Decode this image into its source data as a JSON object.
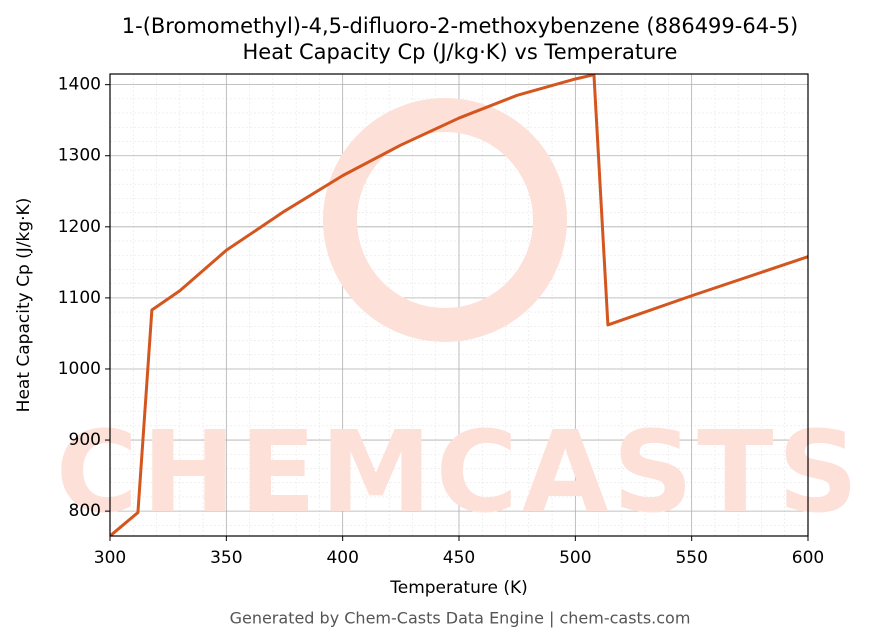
{
  "chart_data": {
    "type": "line",
    "title": "1-(Bromomethyl)-4,5-difluoro-2-methoxybenzene (886499-64-5)",
    "subtitle": "Heat Capacity Cp (J/kg·K) vs Temperature",
    "x_label": "Temperature (K)",
    "y_label": "Heat Capacity Cp (J/kg·K)",
    "watermark": "CHEMCASTS",
    "footer": "Generated by Chem-Casts Data Engine | chem-casts.com",
    "x": [
      300,
      312,
      318,
      330,
      350,
      375,
      400,
      425,
      450,
      475,
      500,
      508,
      514,
      550,
      600
    ],
    "series": [
      {
        "name": "Cp",
        "color": "#d4561f",
        "values": [
          765,
          798,
          1083,
          1110,
          1167,
          1222,
          1272,
          1315,
          1353,
          1385,
          1408,
          1414,
          1062,
          1103,
          1158
        ]
      }
    ],
    "xlim": [
      300,
      600
    ],
    "xticks": [
      300,
      350,
      400,
      450,
      500,
      550,
      600
    ],
    "ylim": [
      765,
      1415
    ],
    "yticks": [
      800,
      900,
      1000,
      1100,
      1200,
      1300,
      1400
    ],
    "grid": true,
    "minor_grid": true
  }
}
